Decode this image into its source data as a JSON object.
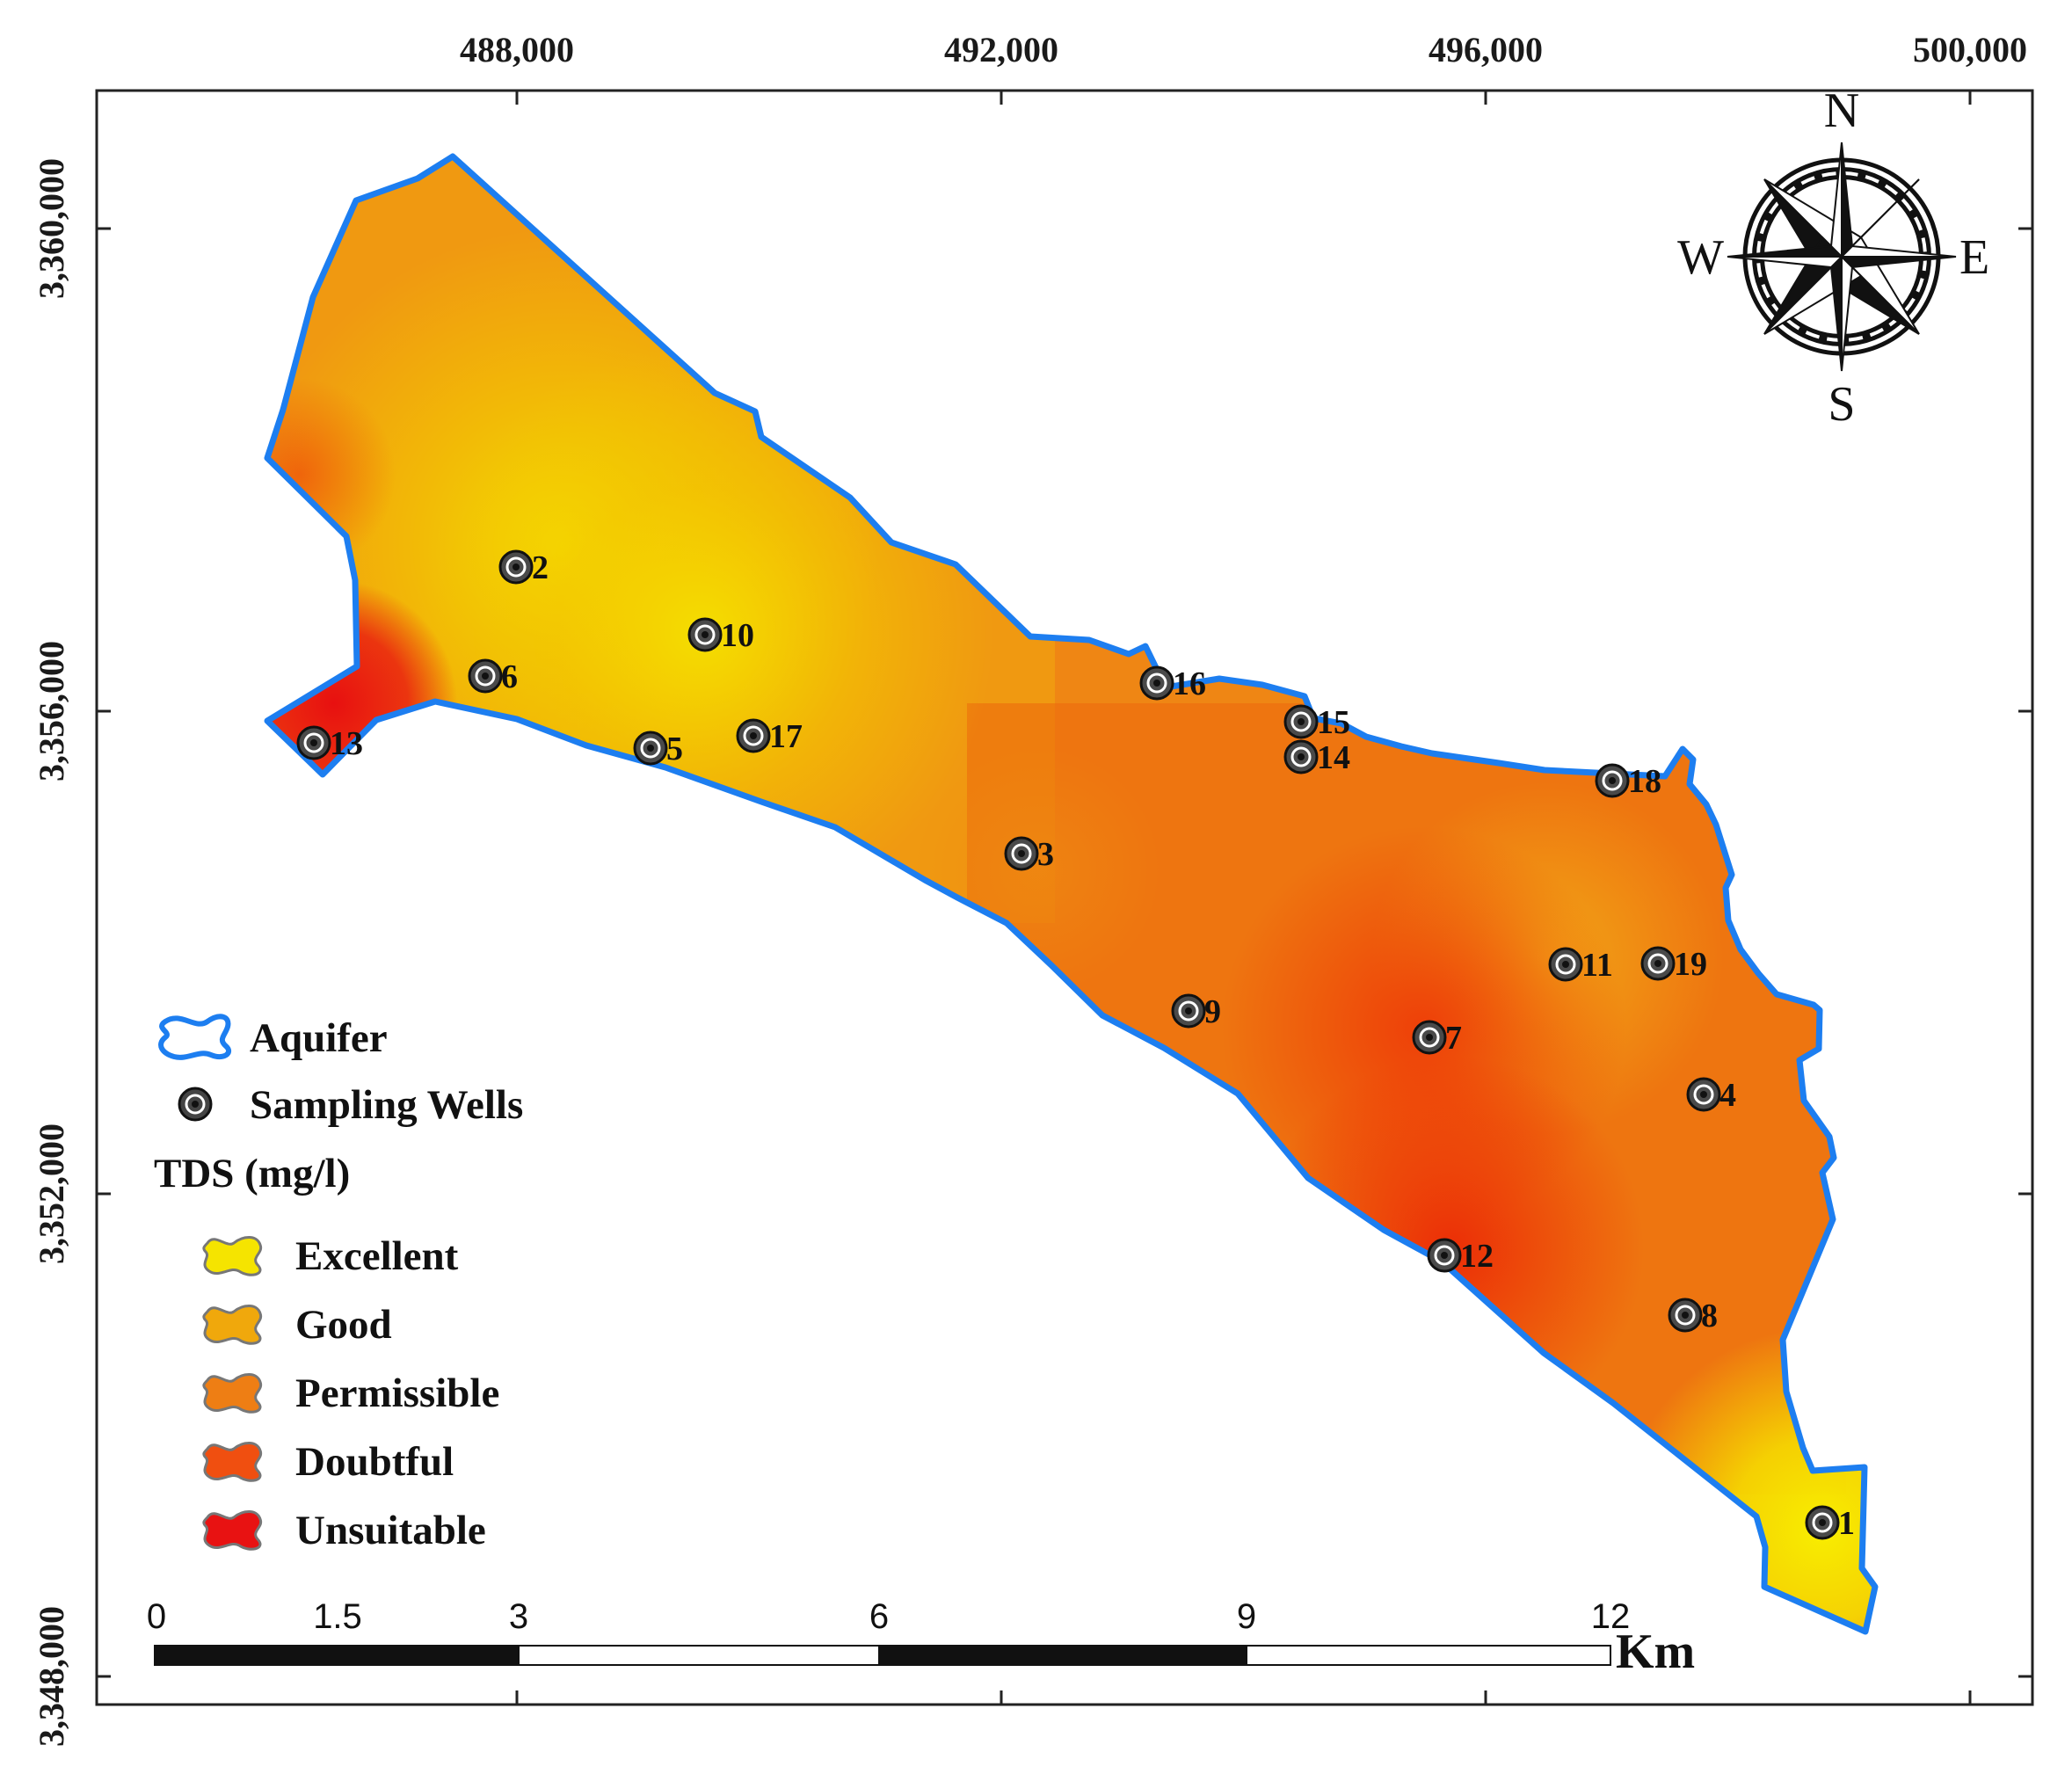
{
  "x_axis": {
    "ticks": [
      {
        "value": 488000,
        "label": "488,000"
      },
      {
        "value": 492000,
        "label": "492,000"
      },
      {
        "value": 496000,
        "label": "496,000"
      },
      {
        "value": 500000,
        "label": "500,000"
      }
    ]
  },
  "y_axis": {
    "ticks": [
      {
        "value": 3360000,
        "label": "3,360,000"
      },
      {
        "value": 3356000,
        "label": "3,356,000"
      },
      {
        "value": 3352000,
        "label": "3,352,000"
      },
      {
        "value": 3348000,
        "label": "3,348,000"
      }
    ]
  },
  "compass": {
    "north": "N",
    "south": "S",
    "east": "E",
    "west": "W"
  },
  "legend": {
    "aquifer_label": "Aquifer",
    "wells_label": "Sampling Wells",
    "tds_title": "TDS (mg/l)",
    "classes": [
      {
        "label": "Excellent",
        "color": "#f5e400"
      },
      {
        "label": "Good",
        "color": "#f0a80c"
      },
      {
        "label": "Permissible",
        "color": "#ee7e14"
      },
      {
        "label": "Doubtful",
        "color": "#f04f10"
      },
      {
        "label": "Unsuitable",
        "color": "#e81212"
      }
    ]
  },
  "aquifer_color": "#1d7ef0",
  "scale_bar": {
    "labels": [
      "0",
      "1.5",
      "3",
      "6",
      "9",
      "12"
    ],
    "unit": "Km"
  },
  "wells": [
    {
      "id": "1",
      "class": "Excellent"
    },
    {
      "id": "2",
      "class": "Excellent"
    },
    {
      "id": "3",
      "class": "Permissible"
    },
    {
      "id": "4",
      "class": "Permissible"
    },
    {
      "id": "5",
      "class": "Good"
    },
    {
      "id": "6",
      "class": "Good"
    },
    {
      "id": "7",
      "class": "Doubtful"
    },
    {
      "id": "8",
      "class": "Permissible"
    },
    {
      "id": "9",
      "class": "Permissible"
    },
    {
      "id": "10",
      "class": "Excellent"
    },
    {
      "id": "11",
      "class": "Good"
    },
    {
      "id": "12",
      "class": "Doubtful"
    },
    {
      "id": "13",
      "class": "Unsuitable"
    },
    {
      "id": "14",
      "class": "Permissible"
    },
    {
      "id": "15",
      "class": "Permissible"
    },
    {
      "id": "16",
      "class": "Permissible"
    },
    {
      "id": "17",
      "class": "Excellent"
    },
    {
      "id": "18",
      "class": "Permissible"
    },
    {
      "id": "19",
      "class": "Permissible"
    }
  ]
}
